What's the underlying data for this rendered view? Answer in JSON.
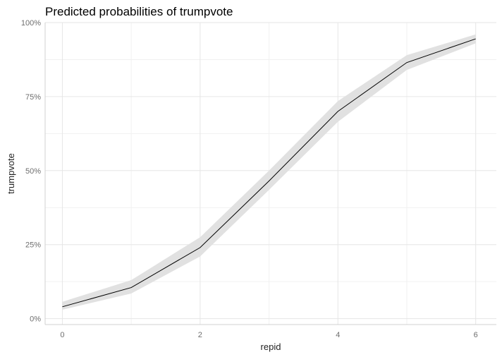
{
  "chart_data": {
    "type": "line",
    "title": "Predicted probabilities of trumpvote",
    "xlabel": "repid",
    "ylabel": "trumpvote",
    "xlim": [
      -0.25,
      6.3
    ],
    "ylim": [
      -0.02,
      1.0
    ],
    "x_ticks": [
      0,
      2,
      4,
      6
    ],
    "x_tick_labels": [
      "0",
      "2",
      "4",
      "6"
    ],
    "y_ticks": [
      0,
      0.25,
      0.5,
      0.75,
      1.0
    ],
    "y_tick_labels": [
      "0%",
      "25%",
      "50%",
      "75%",
      "100%"
    ],
    "series": [
      {
        "name": "trumpvote",
        "x": [
          0,
          1,
          2,
          3,
          4,
          5,
          6
        ],
        "y": [
          0.04,
          0.105,
          0.24,
          0.465,
          0.7,
          0.865,
          0.945
        ],
        "ci_low": [
          0.03,
          0.085,
          0.21,
          0.435,
          0.665,
          0.84,
          0.93
        ],
        "ci_high": [
          0.057,
          0.13,
          0.275,
          0.5,
          0.735,
          0.89,
          0.96
        ],
        "color": "#000000",
        "band_color": "#e1e1e1"
      }
    ]
  }
}
